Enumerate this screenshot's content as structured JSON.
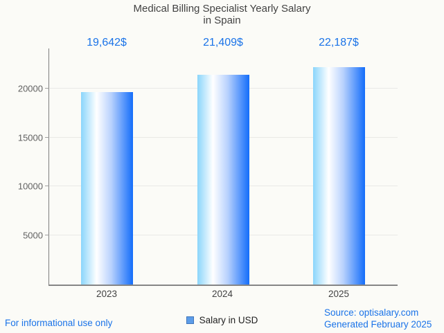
{
  "page": {
    "background_color": "#fbfbf7",
    "accent_color": "#1a73e8"
  },
  "header": {
    "title_line1": "Medical Billing Specialist Yearly Salary",
    "title_line2": "in Spain"
  },
  "chart_data": {
    "type": "bar",
    "title": "Medical Billing Specialist Yearly Salary in Spain",
    "categories": [
      "2023",
      "2024",
      "2025"
    ],
    "values": [
      19642,
      21409,
      22187
    ],
    "value_labels": [
      "19,642$",
      "21,409$",
      "22,187$"
    ],
    "series_name": "Salary in USD",
    "xlabel": "",
    "ylabel": "",
    "yticks": [
      5000,
      10000,
      15000,
      20000
    ],
    "ytick_labels": [
      "5000",
      "10000",
      "15000",
      "20000"
    ],
    "ylim": [
      0,
      24100
    ],
    "grid": "horizontal",
    "legend_position": "bottom",
    "bar_gradient": [
      "#8ad5fb",
      "#ffffff",
      "#146dfa"
    ],
    "value_label_color": "#1a73e8",
    "axis_label_color": "#616161"
  },
  "legend": {
    "swatch_color": "#5c9ce8",
    "label": "Salary in USD"
  },
  "footer": {
    "disclaimer": "For informational use only",
    "source_line1": "Source: optisalary.com",
    "source_line2": "Generated February 2025"
  }
}
